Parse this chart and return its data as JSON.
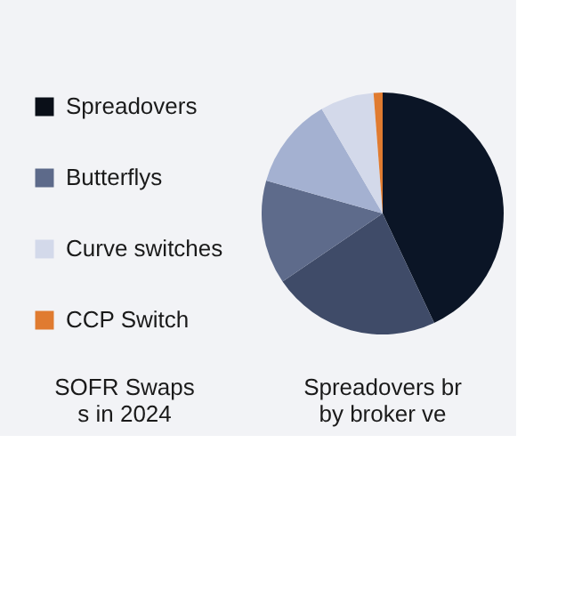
{
  "chart_data": [
    {
      "type": "other",
      "title": "SOFR Swaps\ns in 2024",
      "categories": [
        "Spreadovers",
        "Butterflys",
        "Curve switches",
        "CCP Switch"
      ],
      "colors": [
        "#0a0f18",
        "#5d6a8a",
        "#d3d9ea",
        "#e07b30"
      ]
    },
    {
      "type": "pie",
      "title": "Spreadovers br\nby broker ve",
      "categories": [
        null,
        null,
        null,
        null,
        null,
        null
      ],
      "values": [
        43,
        22.5,
        13.9,
        12.2,
        7.2,
        1.2
      ],
      "colors": [
        "#0b1526",
        "#3f4b68",
        "#5e6b8b",
        "#a4b1d1",
        "#d3d9ea",
        "#e07b30"
      ]
    }
  ]
}
